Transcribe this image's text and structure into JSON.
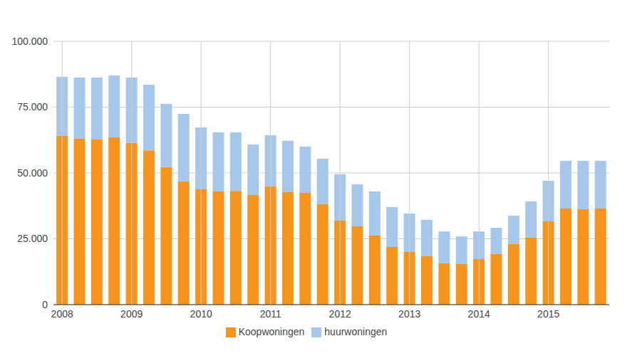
{
  "chart_data": {
    "type": "bar",
    "stacked": true,
    "grid": true,
    "legend": "bottom",
    "categories": [
      "2008",
      null,
      null,
      null,
      "2009",
      null,
      null,
      null,
      "2010",
      null,
      null,
      null,
      "2011",
      null,
      null,
      null,
      "2012",
      null,
      null,
      null,
      "2013",
      null,
      null,
      null,
      "2014",
      null,
      null,
      null,
      "2015",
      null,
      null,
      null
    ],
    "series": [
      {
        "name": "Koopwoningen",
        "color": "#f7941d",
        "values": [
          64100,
          63000,
          62700,
          63500,
          61400,
          58600,
          52200,
          46800,
          43800,
          43000,
          43200,
          41600,
          44900,
          42700,
          42400,
          38100,
          31900,
          29700,
          26200,
          21900,
          20000,
          18400,
          15700,
          15400,
          17300,
          19200,
          23000,
          25400,
          31600,
          36500,
          36200,
          36500
        ]
      },
      {
        "name": "huurwoningen",
        "color": "#a8c8eb",
        "values": [
          22400,
          23200,
          23500,
          23500,
          24800,
          24900,
          24000,
          25600,
          23500,
          22400,
          22200,
          19200,
          19400,
          19500,
          17600,
          17300,
          17600,
          16000,
          16800,
          15100,
          14600,
          13800,
          12100,
          10500,
          10500,
          10000,
          10800,
          13800,
          15400,
          18100,
          18400,
          18100
        ]
      }
    ],
    "ylim": [
      0,
      100000
    ],
    "yticks": [
      0,
      {
        "value": 25000,
        "label": "25.000"
      },
      {
        "value": 50000,
        "label": "50.000"
      },
      {
        "value": 75000,
        "label": "75.000"
      },
      {
        "value": 100000,
        "label": "100.000"
      }
    ]
  }
}
